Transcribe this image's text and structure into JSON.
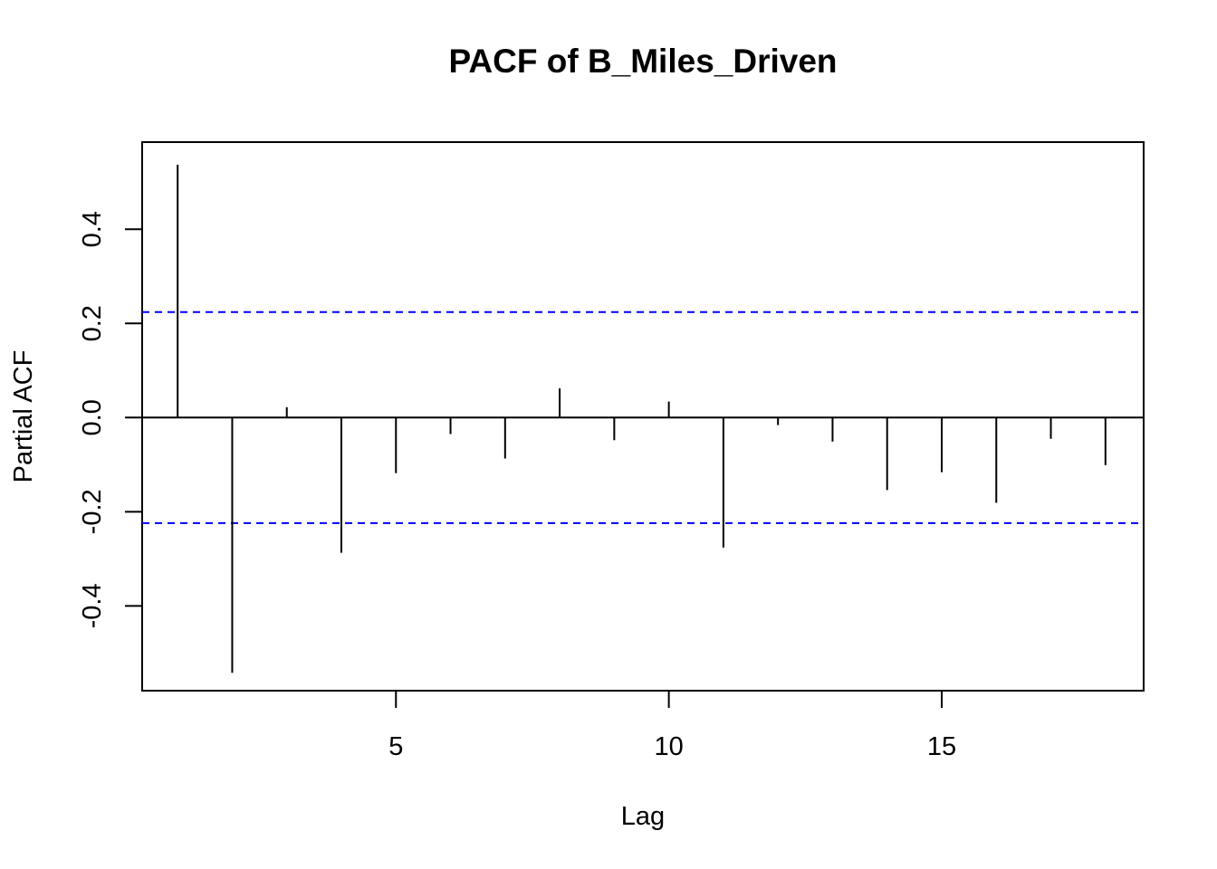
{
  "chart_data": {
    "type": "bar",
    "title": "PACF of B_Miles_Driven",
    "xlabel": "Lag",
    "ylabel": "Partial ACF",
    "xlim": [
      0.35,
      18.7
    ],
    "ylim": [
      -0.58,
      0.585
    ],
    "x_ticks": [
      5,
      10,
      15
    ],
    "x_tick_labels": [
      "5",
      "10",
      "15"
    ],
    "y_ticks": [
      -0.4,
      -0.2,
      0.0,
      0.2,
      0.4
    ],
    "y_tick_labels": [
      "-0.4",
      "-0.2",
      "0.0",
      "0.2",
      "0.4"
    ],
    "confidence_bound": 0.224,
    "bound_color": "#0000ff",
    "lags": [
      1,
      2,
      3,
      4,
      5,
      6,
      7,
      8,
      9,
      10,
      11,
      12,
      13,
      14,
      15,
      16,
      17,
      18
    ],
    "values": [
      0.537,
      -0.542,
      0.022,
      -0.287,
      -0.118,
      -0.035,
      -0.087,
      0.062,
      -0.048,
      0.034,
      -0.276,
      -0.016,
      -0.051,
      -0.154,
      -0.116,
      -0.181,
      -0.045,
      -0.101
    ]
  }
}
